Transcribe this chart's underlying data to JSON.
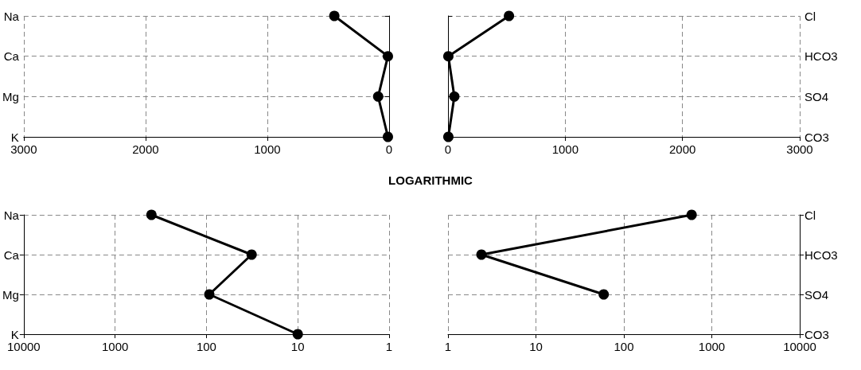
{
  "chart_data": [
    {
      "type": "line",
      "orientation": "horizontal",
      "categories": [
        "Na",
        "Ca",
        "Mg",
        "K"
      ],
      "xlim": [
        3000,
        0
      ],
      "xticks": [
        3000,
        2000,
        1000,
        0
      ],
      "grid": true,
      "marker": "circle",
      "line_style": "solid",
      "series": [
        {
          "color": "#000000",
          "values": [
            450,
            10,
            90,
            10
          ]
        }
      ]
    },
    {
      "type": "line",
      "orientation": "horizontal",
      "categories": [
        "Cl",
        "HCO3",
        "SO4",
        "CO3"
      ],
      "xlim": [
        0,
        3000
      ],
      "xticks": [
        0,
        1000,
        2000,
        3000
      ],
      "grid": true,
      "marker": "circle",
      "line_style": "solid",
      "series": [
        {
          "color": "#000000",
          "values": [
            520,
            3,
            54,
            3
          ]
        }
      ]
    },
    {
      "type": "other",
      "title": "LOGARITHMIC"
    },
    {
      "type": "line",
      "orientation": "horizontal",
      "categories": [
        "Na",
        "Ca",
        "Mg",
        "K"
      ],
      "log": "x",
      "xlim": [
        10000,
        1
      ],
      "xticks": [
        10000,
        1000,
        100,
        10,
        1
      ],
      "grid": true,
      "marker": "circle",
      "line_style": "solid",
      "series": [
        {
          "color": "#000000",
          "values": [
            400,
            32,
            93,
            10
          ]
        }
      ]
    },
    {
      "type": "line",
      "orientation": "horizontal",
      "categories": [
        "Cl",
        "HCO3",
        "SO4",
        "CO3"
      ],
      "log": "x",
      "xlim": [
        1,
        10000
      ],
      "xticks": [
        1,
        10,
        100,
        1000,
        10000
      ],
      "grid": true,
      "marker": "circle",
      "line_style": "solid",
      "series": [
        {
          "color": "#000000",
          "values": [
            590,
            2.4,
            59,
            null
          ]
        }
      ]
    }
  ]
}
